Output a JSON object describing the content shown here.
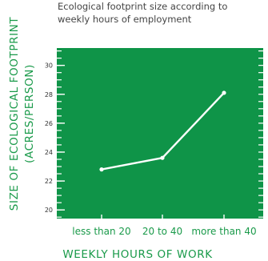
{
  "colors": {
    "plot_background": "#0f9448",
    "accent_green": "#1a9a4a",
    "line": "#ffffff",
    "title_text": "#444444",
    "tick_text": "#333333"
  },
  "chart_data": {
    "type": "line",
    "title": "Ecological footprint size according to weekly hours of employment",
    "title_lines": [
      "Ecological footprint size according to",
      "weekly hours of employment"
    ],
    "xlabel": "WEEKLY HOURS OF WORK",
    "ylabel": "SIZE OF ECOLOGICAL FOOTPRINT (ACRES/PERSON)",
    "ylabel_lines": [
      "SIZE OF ECOLOGICAL FOOTPRINT",
      "(ACRES/PERSON)"
    ],
    "categories": [
      "less than 20",
      "20 to 40",
      "more than 40"
    ],
    "series": [
      {
        "values": [
          22.8,
          23.6,
          28.1
        ]
      }
    ],
    "ylim": [
      19.4,
      31.2
    ],
    "yticks": [
      20,
      22,
      24,
      26,
      28,
      30
    ],
    "yticklabels": [
      "20",
      "22",
      "24",
      "26",
      "28",
      "30"
    ],
    "minor_step": 0.5,
    "grid": false,
    "legend": "none"
  }
}
